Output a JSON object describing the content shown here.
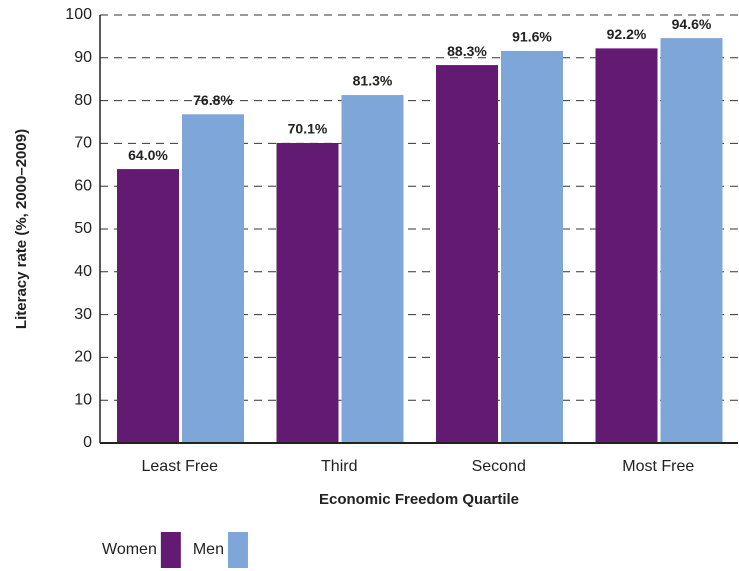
{
  "chart_data": {
    "type": "bar",
    "x_label": "Economic Freedom Quartile",
    "y_label": "Literacy rate (%, 2000–2009)",
    "categories": [
      "Least Free",
      "Third",
      "Second",
      "Most Free"
    ],
    "series": [
      {
        "name": "Women",
        "color": "#621a72",
        "values": [
          64.0,
          70.1,
          88.3,
          92.2
        ],
        "value_labels": [
          "64.0%",
          "70.1%",
          "88.3%",
          "92.2%"
        ]
      },
      {
        "name": "Men",
        "color": "#7ea6d8",
        "values": [
          76.8,
          81.3,
          91.6,
          94.6
        ],
        "value_labels": [
          "76.8%",
          "81.3%",
          "91.6%",
          "94.6%"
        ]
      }
    ],
    "ylim": [
      0,
      100
    ],
    "yticks": [
      0,
      10,
      20,
      30,
      40,
      50,
      60,
      70,
      80,
      90,
      100
    ],
    "grid": true,
    "legend": "bottom-left"
  }
}
